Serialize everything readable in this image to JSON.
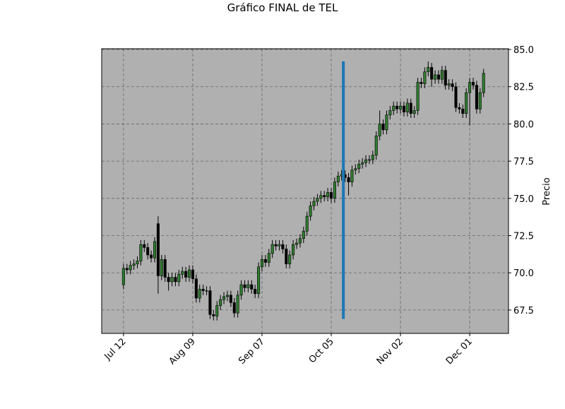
{
  "chart_data": {
    "type": "candlestick",
    "title": "Gráfico FINAL de TEL",
    "y_label": "Precio",
    "open": [
      69.2,
      70.3,
      70.2,
      70.5,
      70.6,
      70.8,
      71.9,
      71.7,
      71.2,
      71.0,
      73.3,
      69.8,
      70.9,
      69.7,
      69.4,
      69.7,
      69.4,
      69.9,
      70.1,
      69.7,
      70.2,
      69.6,
      68.3,
      68.9,
      68.8,
      68.8,
      67.2,
      67.1,
      67.8,
      68.2,
      68.4,
      68.5,
      68.0,
      67.3,
      68.5,
      69.2,
      69.0,
      69.2,
      68.9,
      68.6,
      70.4,
      70.9,
      70.7,
      71.3,
      71.9,
      71.8,
      71.9,
      71.6,
      70.6,
      71.2,
      71.9,
      72.0,
      72.3,
      72.8,
      73.8,
      74.5,
      74.8,
      75.0,
      75.2,
      75.1,
      75.4,
      75.0,
      76.1,
      76.5,
      76.6,
      76.4,
      76.1,
      76.9,
      77.0,
      77.3,
      77.4,
      77.6,
      77.6,
      77.9,
      79.2,
      80.0,
      79.6,
      80.6,
      80.9,
      81.2,
      81.0,
      81.2,
      80.8,
      81.4,
      80.7,
      80.9,
      82.8,
      82.7,
      83.5,
      83.8,
      83.0,
      83.3,
      83.0,
      83.6,
      82.6,
      82.7,
      82.5,
      81.1,
      81.0,
      80.7,
      82.1,
      82.8,
      82.6,
      81.0,
      82.1
    ],
    "high": [
      70.6,
      70.6,
      70.8,
      70.9,
      71.1,
      72.2,
      72.2,
      72.0,
      71.5,
      72.4,
      73.8,
      71.2,
      71.2,
      70.0,
      70.0,
      70.0,
      70.2,
      70.4,
      70.4,
      70.5,
      70.5,
      69.9,
      69.2,
      69.2,
      69.1,
      69.1,
      67.5,
      68.1,
      68.5,
      68.7,
      68.8,
      68.8,
      68.3,
      68.8,
      69.5,
      69.5,
      69.5,
      69.5,
      69.2,
      70.7,
      71.2,
      71.2,
      71.6,
      72.2,
      72.2,
      72.2,
      72.2,
      71.9,
      71.5,
      72.2,
      72.3,
      72.6,
      73.1,
      74.1,
      74.8,
      75.1,
      75.3,
      75.5,
      75.5,
      75.7,
      75.7,
      76.4,
      76.8,
      76.9,
      76.9,
      76.7,
      77.2,
      77.3,
      77.6,
      77.7,
      77.9,
      77.9,
      78.2,
      79.5,
      80.9,
      80.3,
      80.9,
      81.2,
      81.5,
      81.5,
      81.5,
      81.5,
      81.7,
      81.7,
      81.2,
      83.1,
      83.1,
      83.8,
      84.2,
      84.1,
      83.6,
      83.6,
      83.9,
      83.9,
      83.0,
      83.0,
      82.8,
      81.4,
      81.3,
      82.4,
      83.1,
      83.1,
      82.9,
      82.4,
      83.7
    ],
    "low": [
      68.9,
      69.9,
      69.9,
      70.2,
      70.3,
      70.5,
      71.4,
      70.9,
      70.7,
      70.7,
      68.6,
      69.5,
      69.4,
      68.8,
      69.1,
      69.1,
      69.1,
      69.6,
      69.4,
      69.4,
      69.3,
      68.0,
      68.0,
      68.5,
      68.5,
      66.9,
      66.8,
      66.8,
      67.5,
      67.9,
      68.1,
      67.7,
      67.0,
      67.0,
      68.2,
      68.7,
      68.7,
      68.6,
      68.3,
      68.3,
      70.1,
      70.4,
      70.4,
      71.0,
      71.5,
      71.5,
      71.3,
      70.3,
      70.3,
      70.9,
      71.6,
      71.7,
      72.0,
      72.5,
      73.5,
      74.2,
      74.5,
      74.7,
      74.8,
      74.8,
      74.7,
      74.7,
      75.8,
      76.2,
      76.1,
      75.2,
      75.8,
      76.6,
      76.7,
      77.0,
      77.1,
      77.3,
      77.3,
      77.6,
      78.9,
      79.3,
      79.3,
      80.3,
      80.6,
      80.7,
      80.7,
      80.5,
      80.5,
      80.4,
      80.4,
      80.6,
      82.4,
      82.4,
      83.2,
      82.5,
      82.7,
      82.7,
      82.7,
      82.3,
      82.3,
      82.2,
      80.8,
      80.7,
      80.4,
      80.4,
      79.9,
      82.3,
      80.7,
      80.7,
      81.8
    ],
    "close": [
      70.3,
      70.2,
      70.5,
      70.6,
      70.8,
      71.9,
      71.7,
      71.2,
      71.0,
      72.1,
      69.8,
      70.9,
      69.7,
      69.4,
      69.7,
      69.4,
      69.9,
      70.1,
      69.7,
      70.2,
      69.6,
      68.3,
      68.9,
      68.8,
      68.8,
      67.2,
      67.1,
      67.8,
      68.2,
      68.4,
      68.5,
      68.0,
      67.3,
      68.5,
      69.2,
      69.0,
      69.2,
      68.9,
      68.6,
      70.4,
      70.9,
      70.7,
      71.3,
      71.9,
      71.8,
      71.9,
      71.6,
      70.6,
      71.2,
      71.9,
      72.0,
      72.3,
      72.8,
      73.8,
      74.5,
      74.8,
      75.0,
      75.2,
      75.1,
      75.4,
      75.0,
      76.1,
      76.5,
      76.6,
      76.4,
      76.1,
      76.9,
      77.0,
      77.3,
      77.4,
      77.6,
      77.6,
      77.9,
      79.2,
      80.0,
      79.6,
      80.6,
      80.9,
      81.2,
      81.0,
      81.2,
      80.8,
      81.4,
      80.7,
      80.9,
      82.8,
      82.7,
      83.5,
      83.8,
      83.0,
      83.3,
      83.0,
      83.6,
      82.6,
      82.7,
      82.5,
      81.1,
      81.0,
      80.7,
      82.1,
      82.8,
      82.6,
      81.0,
      82.1,
      83.4
    ],
    "up_color": "#2e7d2e",
    "down_color": "#000000",
    "xlim": [
      -6.3,
      111.2
    ],
    "xticks": [
      {
        "value": 0,
        "label": "Jul 12"
      },
      {
        "value": 20,
        "label": "Aug 09"
      },
      {
        "value": 40,
        "label": "Sep 07"
      },
      {
        "value": 60,
        "label": "Oct 05"
      },
      {
        "value": 80,
        "label": "Nov 02"
      },
      {
        "value": 100,
        "label": "Dec 01"
      }
    ],
    "ylim": [
      65.93,
      85.05
    ],
    "yticks": [
      67.5,
      {
        "value": 70,
        "label": "70.0"
      },
      72.5,
      {
        "value": 75,
        "label": "75.0"
      },
      77.5,
      {
        "value": 80,
        "label": "80.0"
      },
      82.5,
      {
        "value": 85,
        "label": "85.0"
      }
    ],
    "grid": true,
    "vline": {
      "x": 63.5,
      "ymin": 66.9,
      "ymax": 84.2,
      "color": "#1f77b4"
    }
  }
}
